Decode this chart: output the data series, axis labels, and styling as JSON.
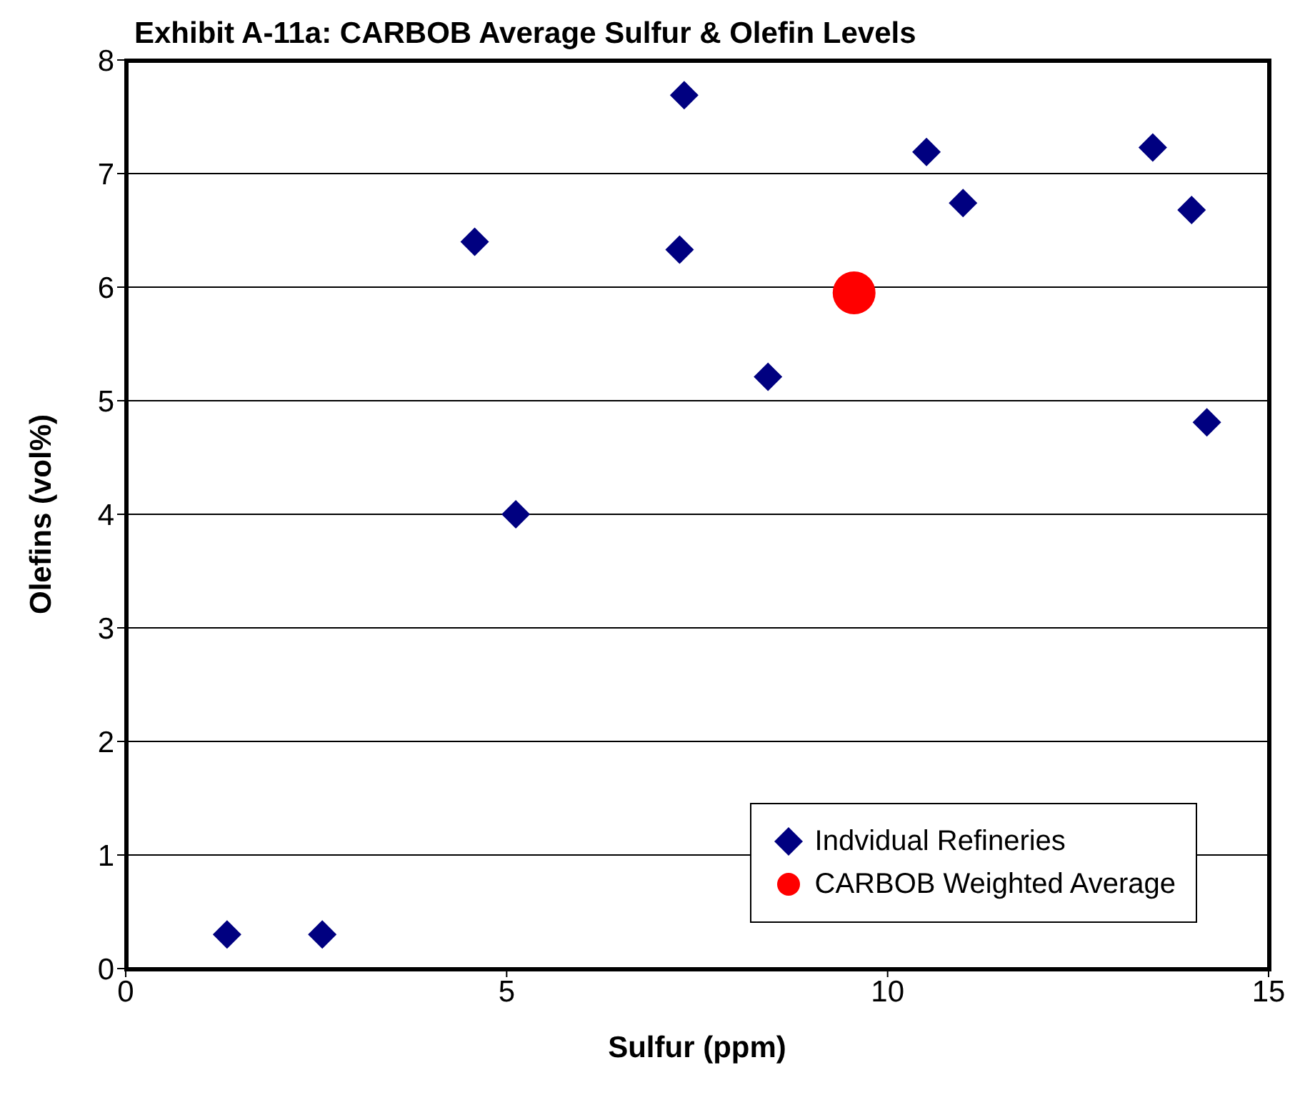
{
  "chart_data": {
    "type": "scatter",
    "title": "Exhibit A-11a: CARBOB Average Sulfur & Olefin Levels",
    "xlabel": "Sulfur (ppm)",
    "ylabel": "Olefins (vol%)",
    "xlim": [
      0,
      15
    ],
    "xticks": [
      0,
      5,
      10,
      15
    ],
    "ylim": [
      0,
      8
    ],
    "yticks": [
      0,
      1,
      2,
      3,
      4,
      5,
      6,
      7,
      8
    ],
    "grid": "y",
    "legend": "bottom right",
    "series": [
      {
        "name": "Indvidual Refineries",
        "color": "#000080",
        "marker": "diamond",
        "x": [
          1.33,
          2.58,
          4.58,
          5.12,
          7.33,
          7.27,
          8.43,
          10.51,
          10.99,
          13.48,
          13.99,
          14.19
        ],
        "values": [
          0.3,
          0.3,
          6.4,
          4.0,
          7.69,
          6.33,
          5.21,
          7.19,
          6.74,
          7.23,
          6.68,
          4.81
        ]
      },
      {
        "name": "CARBOB Weighted Average",
        "color": "#ff0000",
        "marker": "circle",
        "x": [
          9.56
        ],
        "values": [
          5.95
        ]
      }
    ]
  }
}
